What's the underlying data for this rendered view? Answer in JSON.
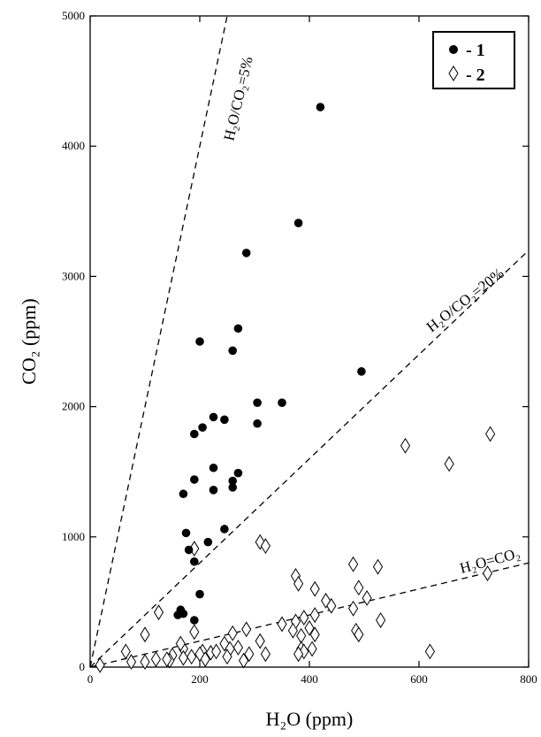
{
  "chart_data": {
    "type": "scatter",
    "xlabel": "H₂O (ppm)",
    "ylabel": "CO₂ (ppm)",
    "xlim": [
      0,
      800
    ],
    "ylim": [
      0,
      5000
    ],
    "xticks": [
      "0",
      "200",
      "400",
      "600",
      "800"
    ],
    "yticks": [
      "0",
      "1000",
      "2000",
      "3000",
      "4000",
      "5000"
    ],
    "grid": false,
    "legend_position": "top-right",
    "reference_lines": [
      {
        "label": "H₂O/CO₂=5%",
        "slope": 20
      },
      {
        "label": "H₂O/CO₂=20%",
        "slope": 4
      },
      {
        "label": "H₂O=CO₂",
        "slope": 1
      }
    ],
    "series": [
      {
        "name": "- 1",
        "marker": "filled-circle",
        "points": [
          [
            420,
            4300
          ],
          [
            380,
            3410
          ],
          [
            285,
            3180
          ],
          [
            270,
            2600
          ],
          [
            200,
            2500
          ],
          [
            260,
            2430
          ],
          [
            495,
            2270
          ],
          [
            305,
            2030
          ],
          [
            350,
            2030
          ],
          [
            305,
            1870
          ],
          [
            225,
            1920
          ],
          [
            245,
            1900
          ],
          [
            205,
            1840
          ],
          [
            190,
            1790
          ],
          [
            190,
            1440
          ],
          [
            225,
            1530
          ],
          [
            260,
            1430
          ],
          [
            270,
            1490
          ],
          [
            225,
            1360
          ],
          [
            260,
            1380
          ],
          [
            170,
            1330
          ],
          [
            245,
            1060
          ],
          [
            175,
            1030
          ],
          [
            215,
            960
          ],
          [
            180,
            900
          ],
          [
            190,
            810
          ],
          [
            200,
            560
          ],
          [
            165,
            440
          ],
          [
            170,
            410
          ],
          [
            160,
            400
          ],
          [
            190,
            360
          ]
        ]
      },
      {
        "name": "- 2",
        "marker": "open-diamond",
        "points": [
          [
            730,
            1790
          ],
          [
            575,
            1700
          ],
          [
            655,
            1560
          ],
          [
            310,
            960
          ],
          [
            320,
            930
          ],
          [
            190,
            910
          ],
          [
            480,
            790
          ],
          [
            525,
            770
          ],
          [
            725,
            720
          ],
          [
            375,
            700
          ],
          [
            380,
            640
          ],
          [
            410,
            600
          ],
          [
            490,
            610
          ],
          [
            505,
            530
          ],
          [
            430,
            510
          ],
          [
            440,
            470
          ],
          [
            480,
            450
          ],
          [
            530,
            360
          ],
          [
            350,
            330
          ],
          [
            375,
            350
          ],
          [
            390,
            380
          ],
          [
            410,
            400
          ],
          [
            400,
            300
          ],
          [
            370,
            280
          ],
          [
            385,
            240
          ],
          [
            410,
            250
          ],
          [
            485,
            280
          ],
          [
            490,
            250
          ],
          [
            125,
            420
          ],
          [
            100,
            250
          ],
          [
            190,
            270
          ],
          [
            205,
            120
          ],
          [
            220,
            110
          ],
          [
            245,
            180
          ],
          [
            260,
            260
          ],
          [
            285,
            290
          ],
          [
            310,
            200
          ],
          [
            320,
            100
          ],
          [
            290,
            100
          ],
          [
            270,
            150
          ],
          [
            280,
            50
          ],
          [
            255,
            140
          ],
          [
            230,
            120
          ],
          [
            200,
            100
          ],
          [
            185,
            80
          ],
          [
            170,
            140
          ],
          [
            165,
            180
          ],
          [
            150,
            90
          ],
          [
            145,
            50
          ],
          [
            120,
            60
          ],
          [
            100,
            40
          ],
          [
            75,
            40
          ],
          [
            65,
            120
          ],
          [
            18,
            15
          ],
          [
            385,
            140
          ],
          [
            390,
            120
          ],
          [
            405,
            140
          ],
          [
            620,
            120
          ],
          [
            170,
            70
          ],
          [
            140,
            60
          ],
          [
            210,
            60
          ],
          [
            380,
            100
          ],
          [
            250,
            80
          ]
        ]
      }
    ]
  }
}
